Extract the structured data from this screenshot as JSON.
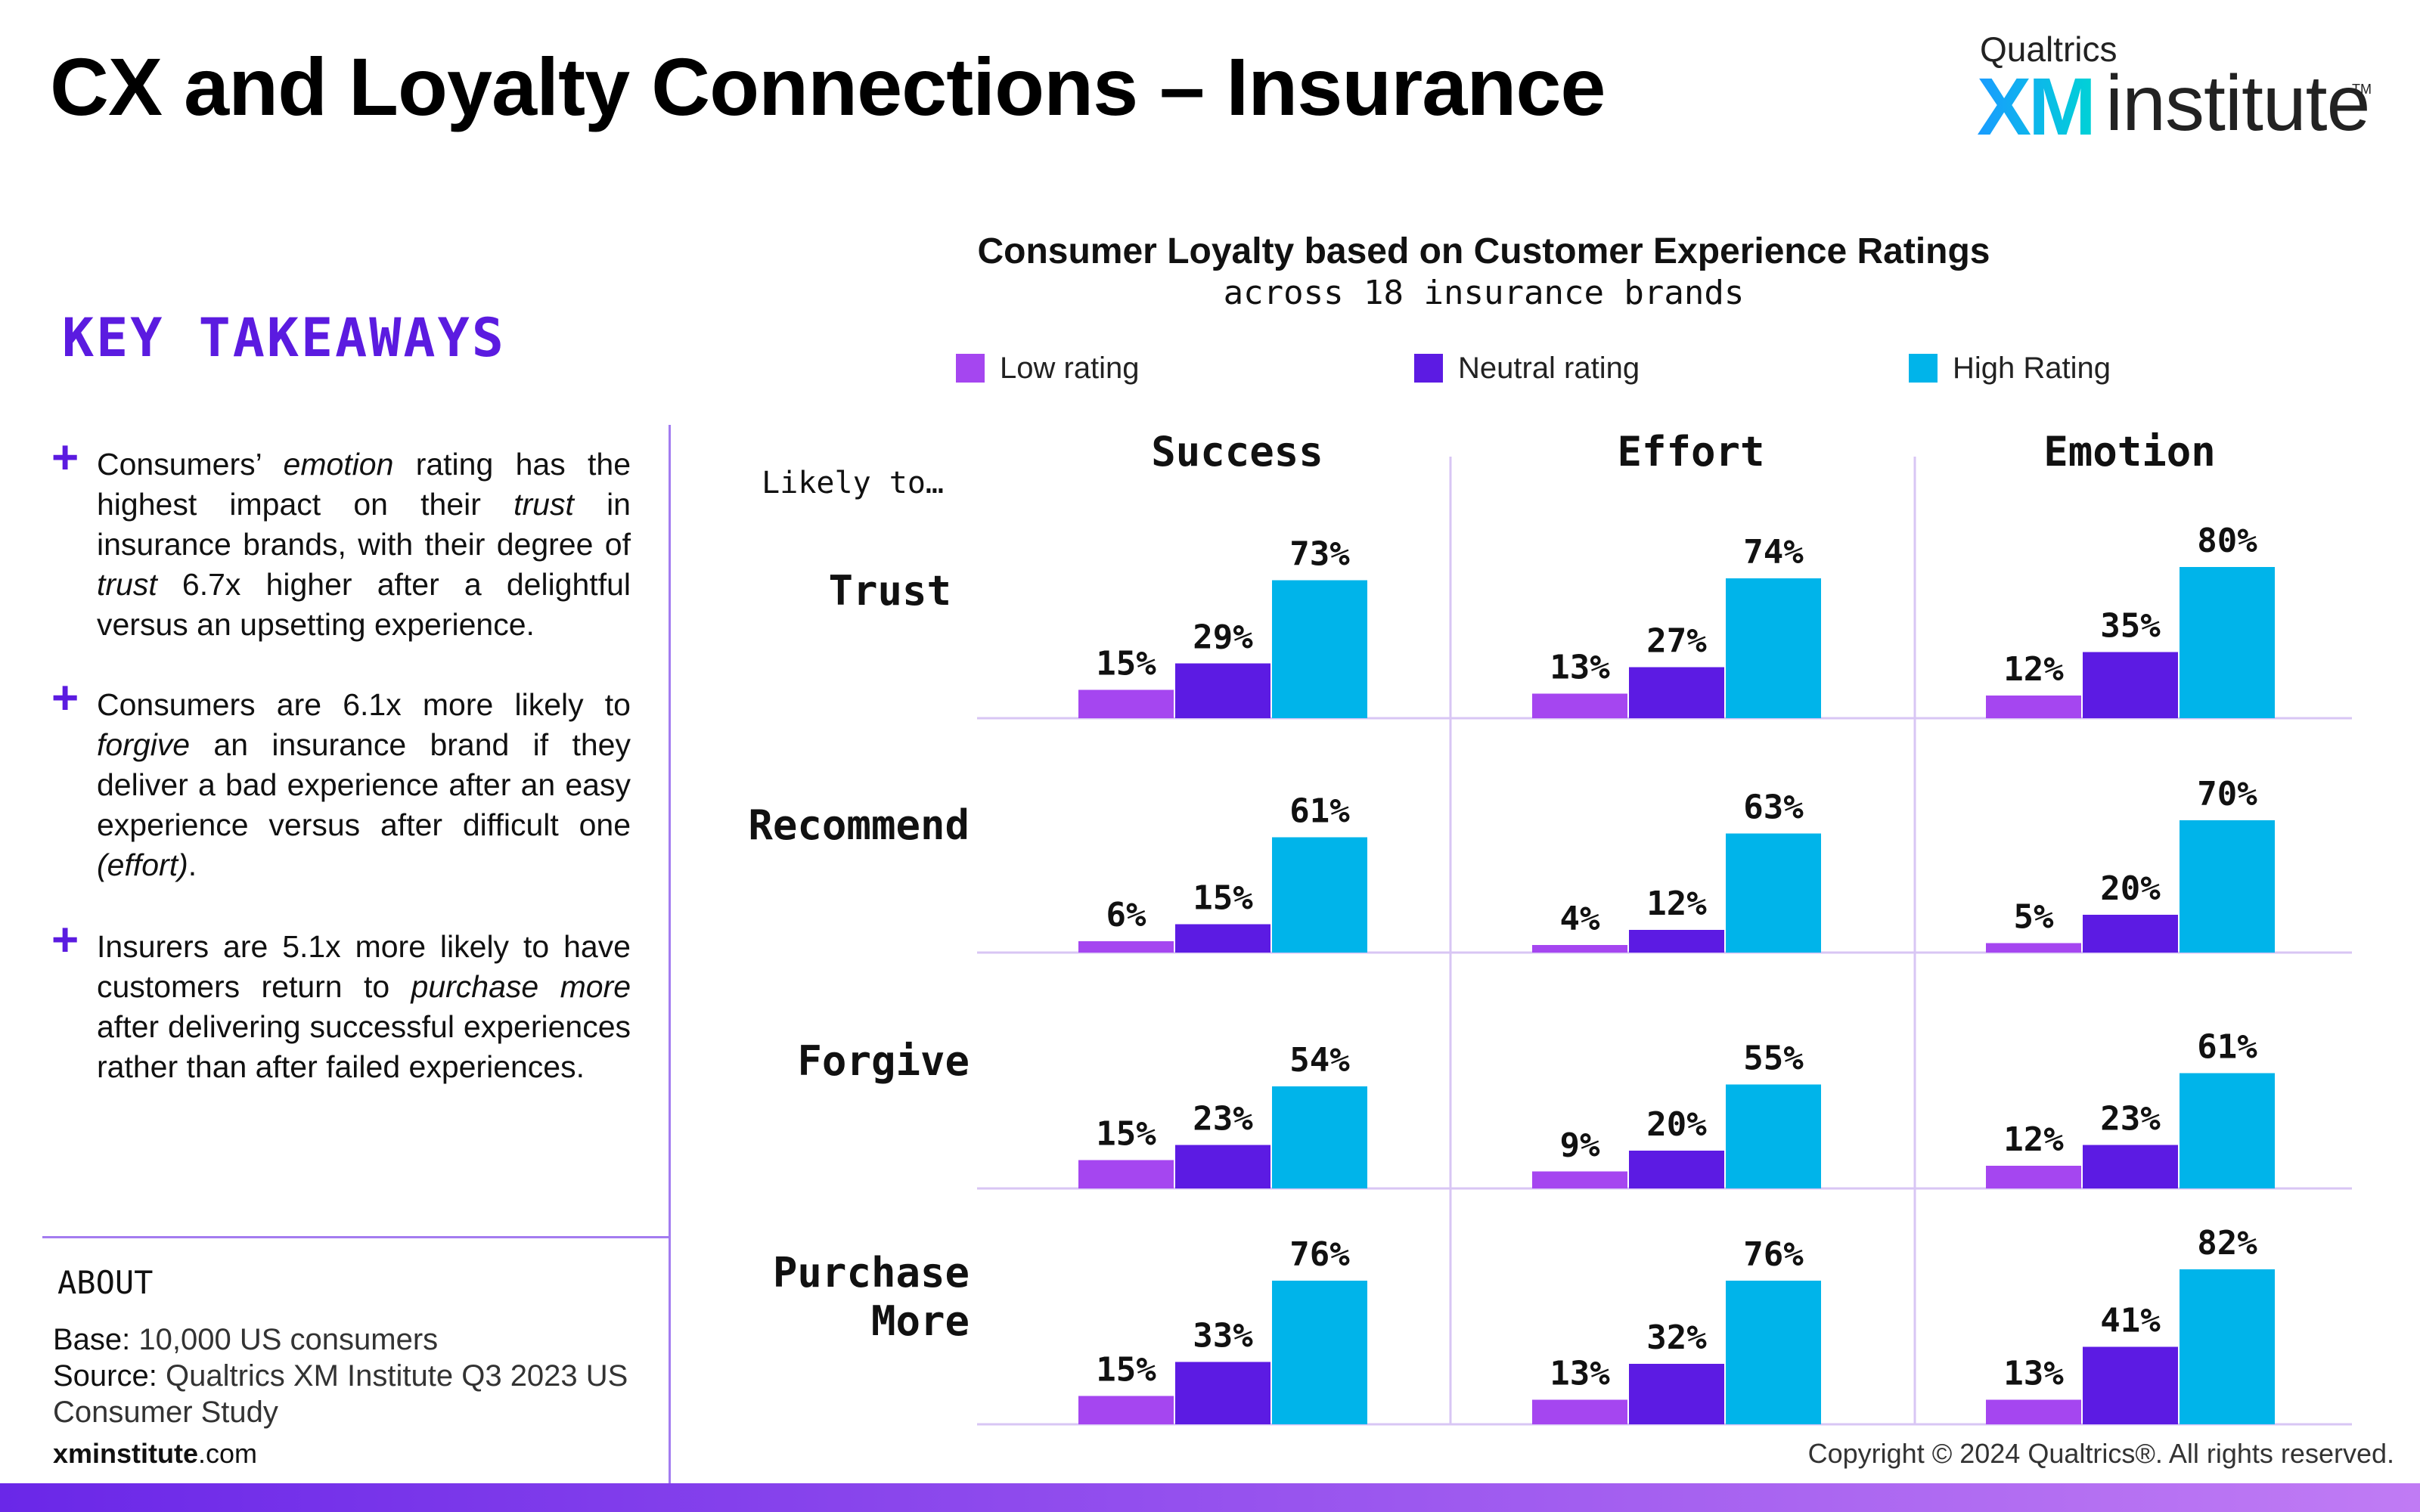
{
  "title": "CX and Loyalty Connections – Insurance",
  "logo": {
    "brand": "Qualtrics",
    "xm": "XM",
    "institute": "institute",
    "tm": "TM"
  },
  "key_takeaways": {
    "heading": "KEY TAKEAWAYS",
    "items": [
      {
        "icon": "plus-icon",
        "parts": [
          {
            "t": "Consumers’ "
          },
          {
            "t": "emotion",
            "i": true
          },
          {
            "t": " rating has the highest impact on their "
          },
          {
            "t": "trust",
            "i": true
          },
          {
            "t": " in insurance brands, with their degree of "
          },
          {
            "t": "trust",
            "i": true
          },
          {
            "t": " 6.7x higher after a delightful versus an upsetting experience."
          }
        ]
      },
      {
        "icon": "plus-icon",
        "parts": [
          {
            "t": "Consumers are 6.1x more likely to "
          },
          {
            "t": "forgive",
            "i": true
          },
          {
            "t": " an insurance brand if they deliver a bad experience after an easy experience versus after difficult one "
          },
          {
            "t": "(effort)",
            "i": true
          },
          {
            "t": "."
          }
        ]
      },
      {
        "icon": "plus-icon",
        "parts": [
          {
            "t": "Insurers are 5.1x more likely to have customers return to "
          },
          {
            "t": "purchase more",
            "i": true
          },
          {
            "t": " after delivering successful experiences rather than after failed experiences."
          }
        ]
      }
    ]
  },
  "about": {
    "heading": "ABOUT",
    "base_label": "Base:",
    "base_value": "10,000 US consumers",
    "source_label": "Source:",
    "source_value": "Qualtrics XM Institute Q3 2023 US Consumer Study"
  },
  "footer": {
    "url_bold": "xminstitute",
    "url_rest": ".com",
    "copyright": "Copyright © 2024 Qualtrics®. All rights reserved."
  },
  "colors": {
    "low": "#a546f0",
    "neutral": "#5c1be3",
    "high": "#00b4ea",
    "divider": "#d8c6f4"
  },
  "chart_data": {
    "type": "bar",
    "title": "Consumer Loyalty based on Customer Experience Ratings",
    "subtitle": "across 18 insurance brands",
    "row_header": "Likely to…",
    "legend": {
      "placement": "top",
      "entries": [
        "Low rating",
        "Neutral rating",
        "High Rating"
      ]
    },
    "columns": [
      "Success",
      "Effort",
      "Emotion"
    ],
    "rows": [
      {
        "label": "Trust",
        "values": [
          [
            15,
            29,
            73
          ],
          [
            13,
            27,
            74
          ],
          [
            12,
            35,
            80
          ]
        ]
      },
      {
        "label": "Recommend",
        "values": [
          [
            6,
            15,
            61
          ],
          [
            4,
            12,
            63
          ],
          [
            5,
            20,
            70
          ]
        ]
      },
      {
        "label": "Forgive",
        "values": [
          [
            15,
            23,
            54
          ],
          [
            9,
            20,
            55
          ],
          [
            12,
            23,
            61
          ]
        ]
      },
      {
        "label": "Purchase More",
        "values": [
          [
            15,
            33,
            76
          ],
          [
            13,
            32,
            76
          ],
          [
            13,
            41,
            82
          ]
        ]
      }
    ],
    "value_suffix": "%"
  }
}
